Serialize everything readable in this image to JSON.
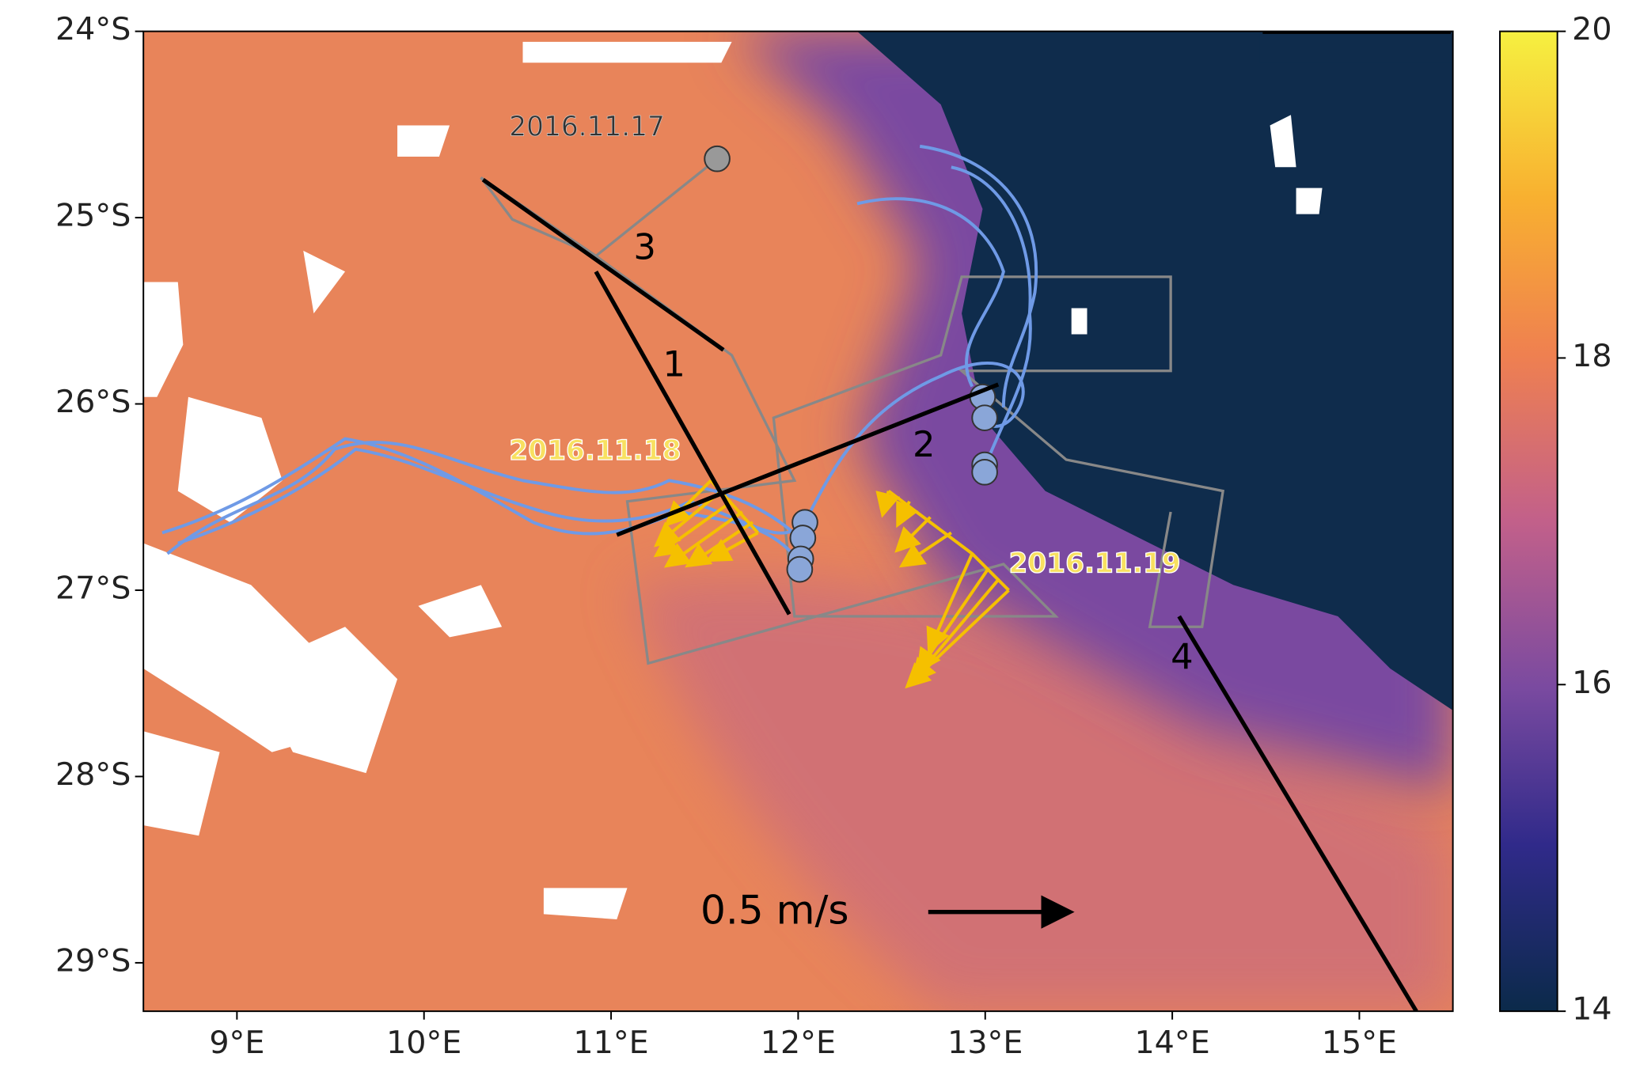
{
  "map": {
    "xlim": [
      8.5,
      15.5
    ],
    "ylim": [
      -24,
      -29.26
    ],
    "xticks": [
      {
        "value": 9,
        "label": "9°E"
      },
      {
        "value": 10,
        "label": "10°E"
      },
      {
        "value": 11,
        "label": "11°E"
      },
      {
        "value": 12,
        "label": "12°E"
      },
      {
        "value": 13,
        "label": "13°E"
      },
      {
        "value": 14,
        "label": "14°E"
      },
      {
        "value": 15,
        "label": "15°E"
      }
    ],
    "yticks": [
      {
        "value": -24,
        "label": "24°S"
      },
      {
        "value": -25,
        "label": "25°S"
      },
      {
        "value": -26,
        "label": "26°S"
      },
      {
        "value": -27,
        "label": "27°S"
      },
      {
        "value": -28,
        "label": "28°S"
      },
      {
        "value": -29,
        "label": "29°S"
      }
    ],
    "colorbar": {
      "range": [
        14,
        20
      ],
      "ticks": [
        14,
        16,
        18,
        20
      ]
    },
    "date_labels": [
      "2016.11.17",
      "2016.11.18",
      "2016.11.19"
    ],
    "section_labels": [
      "1",
      "2",
      "3",
      "4"
    ],
    "scale_label": "0.5 m/s"
  }
}
